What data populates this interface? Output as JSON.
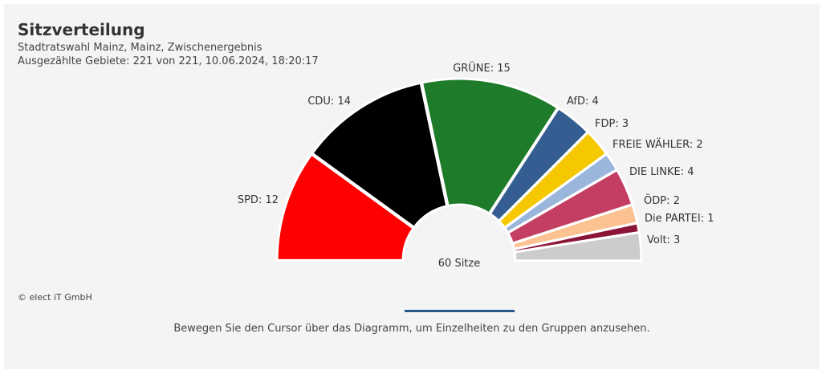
{
  "header": {
    "title": "Sitzverteilung",
    "subtitle": "Stadtratswahl Mainz, Mainz, Zwischenergebnis",
    "counted": "Ausgezählte Gebiete: 221 von 221, 10.06.2024, 18:20:17"
  },
  "chart_data": {
    "type": "pie",
    "variant": "half-donut (parliament)",
    "total_label": "60 Sitze",
    "total": 60,
    "categories": [
      "SPD",
      "CDU",
      "GRÜNE",
      "AfD",
      "FDP",
      "FREIE WÄHLER",
      "DIE LINKE",
      "ÖDP",
      "Die PARTEI",
      "Volt"
    ],
    "values": [
      12,
      14,
      15,
      4,
      3,
      2,
      4,
      2,
      1,
      3
    ],
    "labels": [
      "SPD: 12",
      "CDU: 14",
      "GRÜNE: 15",
      "AfD: 4",
      "FDP: 3",
      "FREIE WÄHLER: 2",
      "DIE LINKE: 4",
      "ÖDP: 2",
      "Die PARTEI: 1",
      "Volt: 3"
    ],
    "colors": [
      "#ff0000",
      "#000000",
      "#1e7b2a",
      "#345d91",
      "#f5c800",
      "#9bb6dc",
      "#c43e63",
      "#fdc292",
      "#8b1536",
      "#cccccc"
    ]
  },
  "footer": {
    "credit": "© elect iT GmbH",
    "hint": "Bewegen Sie den Cursor über das Diagramm, um Einzelheiten zu den Gruppen anzusehen."
  }
}
